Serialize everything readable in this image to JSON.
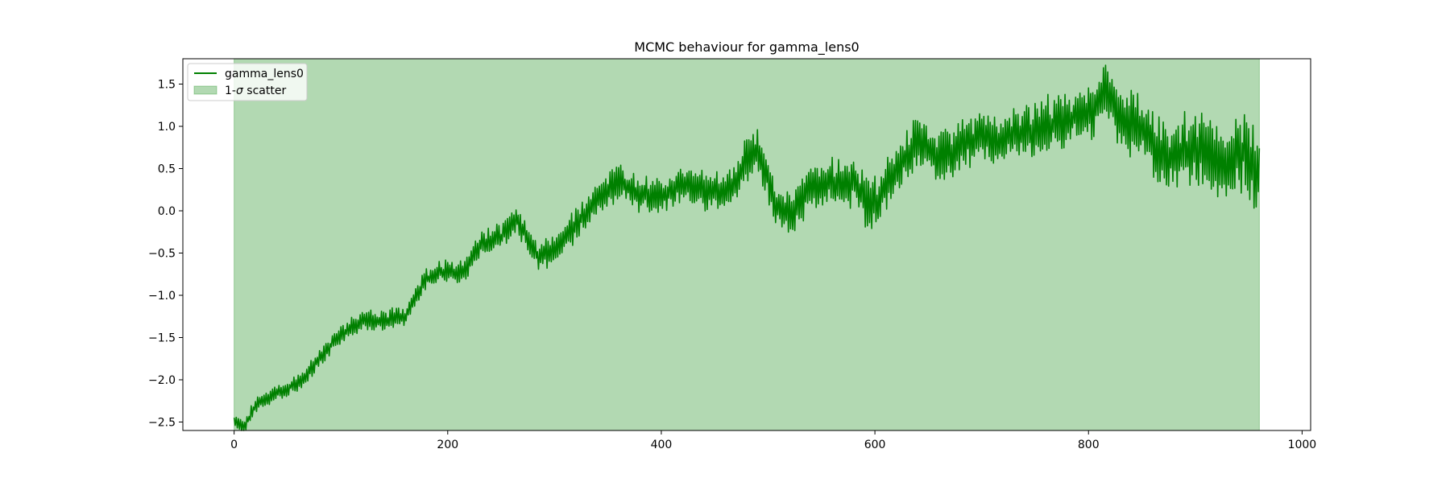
{
  "chart_data": {
    "type": "line",
    "title": "MCMC behaviour for gamma_lens0",
    "xlabel": "",
    "ylabel": "",
    "xlim": [
      -48,
      1008
    ],
    "ylim": [
      -2.6,
      1.8
    ],
    "x_ticks": [
      0,
      200,
      400,
      600,
      800,
      1000
    ],
    "x_tick_labels": [
      "0",
      "200",
      "400",
      "600",
      "800",
      "1000"
    ],
    "y_ticks": [
      -2.5,
      -2.0,
      -1.5,
      -1.0,
      -0.5,
      0.0,
      0.5,
      1.0,
      1.5
    ],
    "y_tick_labels": [
      "−2.5",
      "−2.0",
      "−1.5",
      "−1.0",
      "−0.5",
      "0.0",
      "0.5",
      "1.0",
      "1.5"
    ],
    "grid": false,
    "legend_position": "top-left",
    "legend": [
      {
        "label": "gamma_lens0",
        "kind": "line"
      },
      {
        "label_prefix": "1-",
        "label_symbol": "σ",
        "label_suffix": " scatter",
        "kind": "patch"
      }
    ],
    "series": [
      {
        "name": "gamma_lens0",
        "color": "#008000",
        "n_steps": 960,
        "x_start": 0,
        "x_end": 960,
        "trend": [
          [
            0,
            -2.5
          ],
          [
            10,
            -2.55
          ],
          [
            20,
            -2.3
          ],
          [
            40,
            -2.15
          ],
          [
            60,
            -2.05
          ],
          [
            80,
            -1.75
          ],
          [
            100,
            -1.45
          ],
          [
            120,
            -1.3
          ],
          [
            140,
            -1.3
          ],
          [
            160,
            -1.25
          ],
          [
            180,
            -0.8
          ],
          [
            200,
            -0.7
          ],
          [
            215,
            -0.75
          ],
          [
            230,
            -0.4
          ],
          [
            250,
            -0.3
          ],
          [
            265,
            -0.1
          ],
          [
            285,
            -0.55
          ],
          [
            300,
            -0.45
          ],
          [
            320,
            -0.15
          ],
          [
            340,
            0.15
          ],
          [
            360,
            0.35
          ],
          [
            380,
            0.2
          ],
          [
            400,
            0.15
          ],
          [
            420,
            0.3
          ],
          [
            440,
            0.25
          ],
          [
            460,
            0.2
          ],
          [
            480,
            0.6
          ],
          [
            490,
            0.7
          ],
          [
            505,
            0.15
          ],
          [
            520,
            -0.05
          ],
          [
            540,
            0.3
          ],
          [
            560,
            0.35
          ],
          [
            580,
            0.3
          ],
          [
            600,
            0.05
          ],
          [
            620,
            0.45
          ],
          [
            640,
            0.85
          ],
          [
            660,
            0.6
          ],
          [
            680,
            0.75
          ],
          [
            700,
            0.9
          ],
          [
            720,
            0.85
          ],
          [
            740,
            0.9
          ],
          [
            760,
            1.0
          ],
          [
            780,
            1.05
          ],
          [
            800,
            1.15
          ],
          [
            815,
            1.45
          ],
          [
            830,
            1.1
          ],
          [
            850,
            0.95
          ],
          [
            870,
            0.65
          ],
          [
            890,
            0.75
          ],
          [
            910,
            0.7
          ],
          [
            930,
            0.55
          ],
          [
            945,
            0.7
          ],
          [
            960,
            0.45
          ]
        ],
        "oscillation_amplitude": [
          [
            0,
            0.08
          ],
          [
            200,
            0.12
          ],
          [
            300,
            0.18
          ],
          [
            450,
            0.22
          ],
          [
            600,
            0.28
          ],
          [
            800,
            0.3
          ],
          [
            860,
            0.35
          ],
          [
            960,
            0.45
          ]
        ]
      }
    ],
    "fill_band": {
      "name": "1-σ scatter",
      "color": "#008000",
      "alpha": 0.3,
      "x_range": [
        0,
        960
      ],
      "y_range": [
        -2.6,
        1.8
      ]
    }
  }
}
